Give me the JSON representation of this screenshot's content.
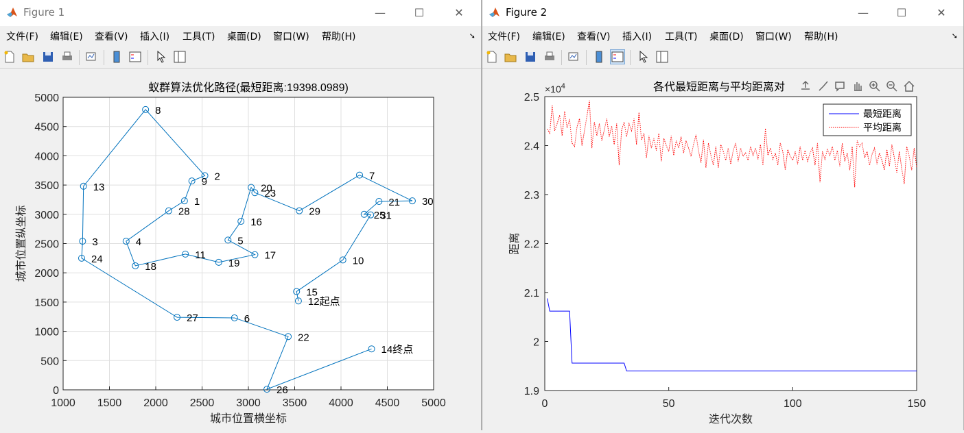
{
  "figure1": {
    "window_title": "Figure 1",
    "menu": [
      "文件(F)",
      "编辑(E)",
      "查看(V)",
      "插入(I)",
      "工具(T)",
      "桌面(D)",
      "窗口(W)",
      "帮助(H)"
    ],
    "toolbar_icons": [
      "new-file-icon",
      "open-folder-icon",
      "save-icon",
      "print-icon",
      "link-plot-icon",
      "insert-colorbar-icon",
      "insert-legend-icon",
      "select-cursor-icon",
      "property-inspector-icon"
    ],
    "colors": {
      "line": "#0072bd",
      "grid": "#dfdfdf"
    }
  },
  "figure2": {
    "window_title": "Figure 2",
    "menu": [
      "文件(F)",
      "编辑(E)",
      "查看(V)",
      "插入(I)",
      "工具(T)",
      "桌面(D)",
      "窗口(W)",
      "帮助(H)"
    ],
    "toolbar_icons": [
      "new-file-icon",
      "open-folder-icon",
      "save-icon",
      "print-icon",
      "link-plot-icon",
      "insert-colorbar-icon",
      "insert-legend-icon",
      "select-cursor-icon",
      "property-inspector-icon"
    ],
    "axes_toolbar": [
      "export-icon",
      "brush-icon",
      "datatip-icon",
      "pan-icon",
      "zoom-in-icon",
      "zoom-out-icon",
      "home-icon"
    ],
    "colors": {
      "best": "#0000ff",
      "avg": "#ff0000"
    }
  },
  "chart_data": [
    {
      "type": "line",
      "title": "蚁群算法优化路径(最短距离:19398.0989)",
      "xlabel": "城市位置横坐标",
      "ylabel": "城市位置纵坐标",
      "xlim": [
        1000,
        5000
      ],
      "ylim": [
        0,
        5000
      ],
      "xticks": [
        1000,
        1500,
        2000,
        2500,
        3000,
        3500,
        4000,
        4500,
        5000
      ],
      "yticks": [
        0,
        500,
        1000,
        1500,
        2000,
        2500,
        3000,
        3500,
        4000,
        4500,
        5000
      ],
      "grid": true,
      "points": [
        {
          "label": "1",
          "x": 2310,
          "y": 3230
        },
        {
          "label": "2",
          "x": 2530,
          "y": 3660
        },
        {
          "label": "3",
          "x": 1210,
          "y": 2540
        },
        {
          "label": "4",
          "x": 1680,
          "y": 2540
        },
        {
          "label": "5",
          "x": 2780,
          "y": 2560
        },
        {
          "label": "6",
          "x": 2850,
          "y": 1230
        },
        {
          "label": "7",
          "x": 4200,
          "y": 3670
        },
        {
          "label": "8",
          "x": 1890,
          "y": 4790
        },
        {
          "label": "9",
          "x": 2390,
          "y": 3570
        },
        {
          "label": "10",
          "x": 4020,
          "y": 2220
        },
        {
          "label": "11",
          "x": 2320,
          "y": 2320
        },
        {
          "label": "12起点",
          "x": 3540,
          "y": 1520
        },
        {
          "label": "13",
          "x": 1220,
          "y": 3480
        },
        {
          "label": "14终点",
          "x": 4330,
          "y": 700
        },
        {
          "label": "15",
          "x": 3520,
          "y": 1680
        },
        {
          "label": "16",
          "x": 2920,
          "y": 2880
        },
        {
          "label": "17",
          "x": 3070,
          "y": 2310
        },
        {
          "label": "18",
          "x": 1780,
          "y": 2120
        },
        {
          "label": "19",
          "x": 2680,
          "y": 2180
        },
        {
          "label": "20",
          "x": 3030,
          "y": 3460
        },
        {
          "label": "21",
          "x": 4410,
          "y": 3220
        },
        {
          "label": "22",
          "x": 3430,
          "y": 910
        },
        {
          "label": "23",
          "x": 3070,
          "y": 3370
        },
        {
          "label": "24",
          "x": 1200,
          "y": 2250
        },
        {
          "label": "25",
          "x": 4250,
          "y": 3000
        },
        {
          "label": "26",
          "x": 3200,
          "y": 10
        },
        {
          "label": "27",
          "x": 2230,
          "y": 1240
        },
        {
          "label": "28",
          "x": 2140,
          "y": 3060
        },
        {
          "label": "29",
          "x": 3550,
          "y": 3060
        },
        {
          "label": "30",
          "x": 4770,
          "y": 3230
        },
        {
          "label": "31",
          "x": 4320,
          "y": 2990
        }
      ],
      "route": [
        12,
        15,
        10,
        31,
        25,
        21,
        30,
        7,
        29,
        23,
        20,
        16,
        5,
        17,
        19,
        11,
        18,
        4,
        28,
        1,
        9,
        2,
        8,
        13,
        3,
        24,
        27,
        6,
        22,
        26,
        14
      ]
    },
    {
      "type": "line",
      "title": "各代最短距离与平均距离对",
      "xlabel": "迭代次数",
      "ylabel": "距离",
      "y_exponent": "×10^4",
      "exponent_base": "×10",
      "exponent_power": "4",
      "xlim": [
        0,
        150
      ],
      "ylim": [
        1.9,
        2.5
      ],
      "xticks": [
        0,
        50,
        100,
        150
      ],
      "yticks": [
        1.9,
        2,
        2.1,
        2.2,
        2.3,
        2.4,
        2.5
      ],
      "legend": [
        "最短距离",
        "平均距离"
      ],
      "legend_position": "top-right",
      "series": [
        {
          "name": "最短距离",
          "style": "solid",
          "x": [
            1,
            2,
            10,
            11,
            32,
            33,
            150
          ],
          "values": [
            2.088,
            2.062,
            2.062,
            1.956,
            1.956,
            1.94,
            1.94
          ]
        },
        {
          "name": "平均距离",
          "style": "dotted",
          "values": [
            2.434,
            2.425,
            2.482,
            2.43,
            2.445,
            2.462,
            2.42,
            2.47,
            2.436,
            2.454,
            2.405,
            2.398,
            2.438,
            2.455,
            2.4,
            2.43,
            2.46,
            2.492,
            2.395,
            2.448,
            2.42,
            2.445,
            2.41,
            2.432,
            2.455,
            2.418,
            2.44,
            2.402,
            2.445,
            2.36,
            2.432,
            2.448,
            2.418,
            2.445,
            2.43,
            2.455,
            2.402,
            2.468,
            2.412,
            2.425,
            2.375,
            2.42,
            2.395,
            2.415,
            2.39,
            2.425,
            2.368,
            2.415,
            2.4,
            2.388,
            2.42,
            2.38,
            2.41,
            2.395,
            2.418,
            2.385,
            2.41,
            2.395,
            2.378,
            2.402,
            2.422,
            2.39,
            2.365,
            2.412,
            2.355,
            2.405,
            2.38,
            2.36,
            2.398,
            2.355,
            2.402,
            2.388,
            2.37,
            2.395,
            2.362,
            2.39,
            2.405,
            2.368,
            2.395,
            2.378,
            2.385,
            2.37,
            2.398,
            2.38,
            2.395,
            2.372,
            2.402,
            2.36,
            2.435,
            2.38,
            2.395,
            2.372,
            2.385,
            2.36,
            2.405,
            2.388,
            2.35,
            2.392,
            2.378,
            2.37,
            2.388,
            2.362,
            2.398,
            2.37,
            2.39,
            2.368,
            2.385,
            2.395,
            2.36,
            2.405,
            2.325,
            2.388,
            2.372,
            2.392,
            2.38,
            2.398,
            2.37,
            2.39,
            2.358,
            2.405,
            2.368,
            2.385,
            2.35,
            2.398,
            2.315,
            2.41,
            2.398,
            2.405,
            2.375,
            2.388,
            2.36,
            2.382,
            2.395,
            2.362,
            2.385,
            2.37,
            2.35,
            2.392,
            2.358,
            2.402,
            2.375,
            2.345,
            2.388,
            2.352,
            2.322,
            2.398,
            2.378,
            2.35,
            2.395,
            2.355
          ]
        }
      ]
    }
  ]
}
